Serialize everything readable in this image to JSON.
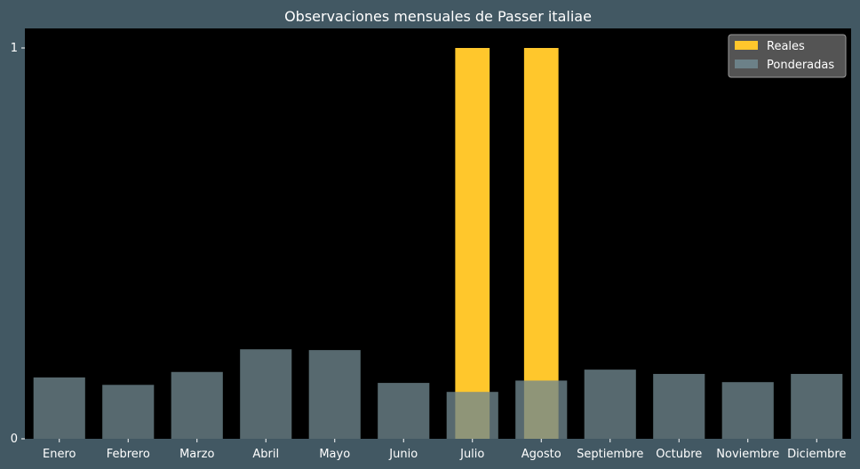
{
  "chart_data": {
    "type": "bar",
    "title": "Observaciones mensuales de Passer italiae",
    "xlabel": "",
    "ylabel": "",
    "categories": [
      "Enero",
      "Febrero",
      "Marzo",
      "Abril",
      "Mayo",
      "Junio",
      "Julio",
      "Agosto",
      "Septiembre",
      "Octubre",
      "Noviembre",
      "Diciembre"
    ],
    "series": [
      {
        "name": "Reales",
        "values": [
          0,
          0,
          0,
          0,
          0,
          0,
          1,
          1,
          0,
          0,
          0,
          0
        ],
        "color": "#ffc72c"
      },
      {
        "name": "Ponderadas",
        "values": [
          0.157,
          0.138,
          0.171,
          0.229,
          0.227,
          0.143,
          0.12,
          0.149,
          0.177,
          0.166,
          0.145,
          0.166
        ],
        "color": "#6f868e"
      }
    ],
    "ylim": [
      0,
      1.05
    ],
    "yticks": [
      0,
      1
    ],
    "grid": false,
    "legend_position": "top-right"
  },
  "colors": {
    "figure_background": "#425863",
    "plot_background": "#000000",
    "text": "#ffffff",
    "legend_background": "#585858"
  }
}
